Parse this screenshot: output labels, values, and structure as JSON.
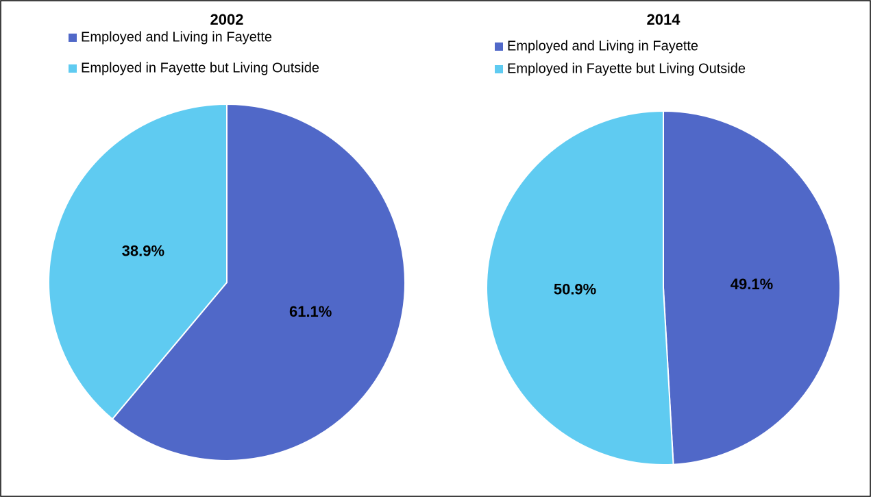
{
  "chart_data": [
    {
      "type": "pie",
      "title": "2002",
      "categories": [
        "Employed and Living in Fayette",
        "Employed in Fayette but Living Outside"
      ],
      "values": [
        61.1,
        38.9
      ],
      "value_labels": [
        "61.1%",
        "38.9%"
      ],
      "colors": [
        "#5068c8",
        "#5fcbf1"
      ],
      "legend": "top"
    },
    {
      "type": "pie",
      "title": "2014",
      "categories": [
        "Employed and Living in Fayette",
        "Employed in Fayette but Living Outside"
      ],
      "values": [
        49.1,
        50.9
      ],
      "value_labels": [
        "49.1%",
        "50.9%"
      ],
      "colors": [
        "#5068c8",
        "#5fcbf1"
      ],
      "legend": "top"
    }
  ]
}
